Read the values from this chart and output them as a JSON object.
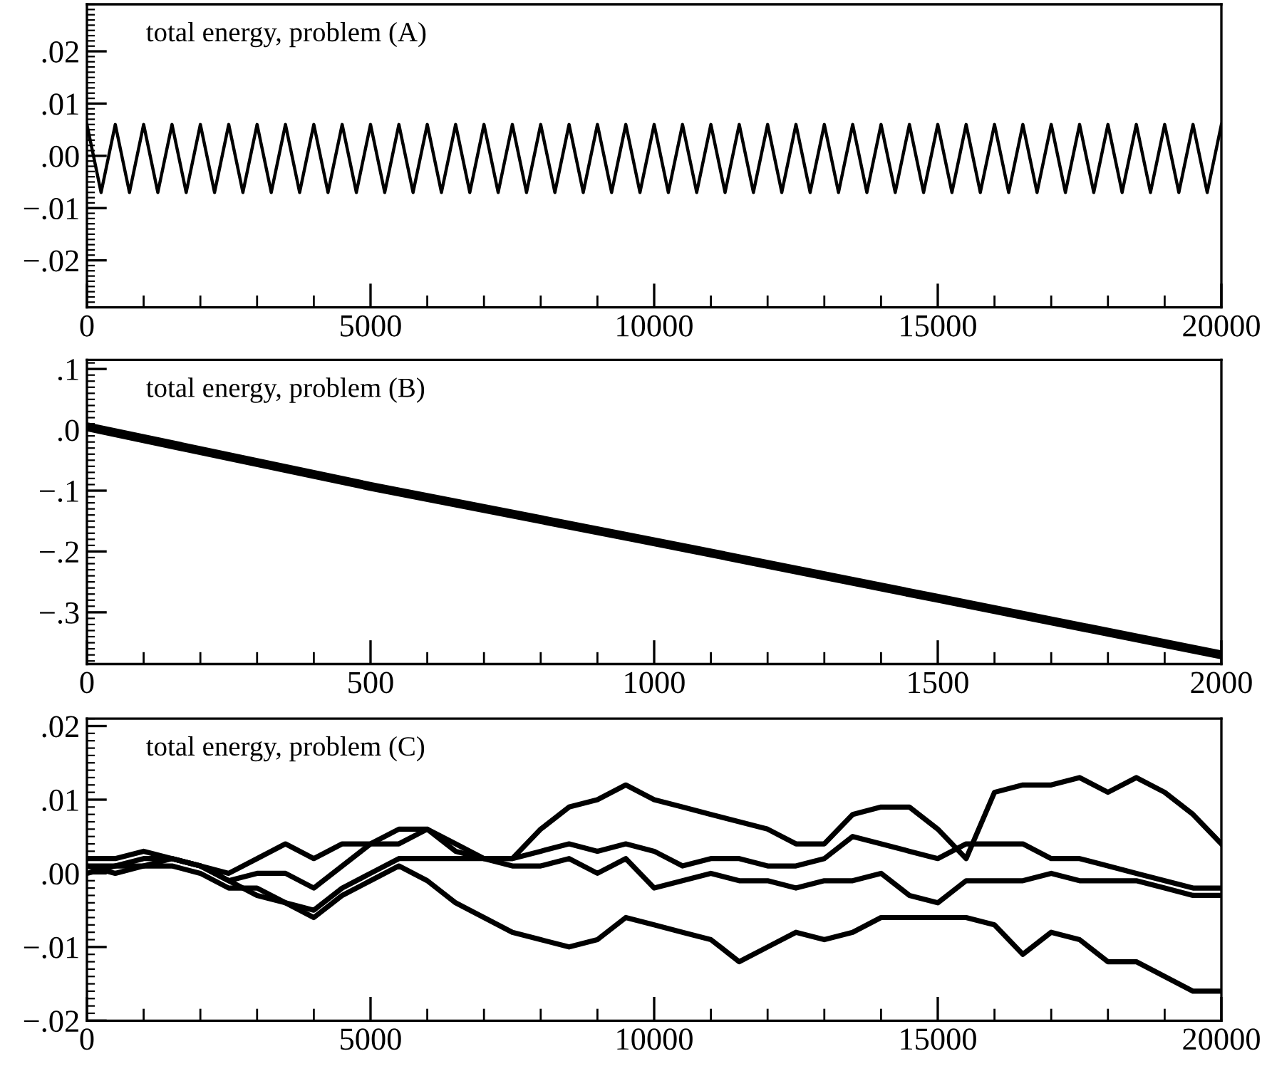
{
  "chart_data": [
    {
      "type": "line",
      "annotations": [
        "total energy, problem (A)"
      ],
      "xlim": [
        0,
        20000
      ],
      "ylim": [
        -0.029,
        0.029
      ],
      "xticks": [
        0,
        5000,
        10000,
        15000,
        20000
      ],
      "yticks": [
        {
          "value": -0.02,
          "label": "−.02"
        },
        {
          "value": -0.01,
          "label": "−.01"
        },
        {
          "value": 0,
          "label": ".00"
        },
        {
          "value": 0.01,
          "label": ".01"
        },
        {
          "value": 0.02,
          "label": ".02"
        }
      ],
      "x": [
        0,
        250,
        500,
        750,
        1000,
        1250,
        1500,
        1750,
        2000,
        2250,
        2500,
        2750,
        3000,
        3250,
        3500,
        3750,
        4000,
        4250,
        4500,
        4750,
        5000,
        5250,
        5500,
        5750,
        6000,
        6250,
        6500,
        6750,
        7000,
        7250,
        7500,
        7750,
        8000,
        8250,
        8500,
        8750,
        9000,
        9250,
        9500,
        9750,
        10000,
        10250,
        10500,
        10750,
        11000,
        11250,
        11500,
        11750,
        12000,
        12250,
        12500,
        12750,
        13000,
        13250,
        13500,
        13750,
        14000,
        14250,
        14500,
        14750,
        15000,
        15250,
        15500,
        15750,
        16000,
        16250,
        16500,
        16750,
        17000,
        17250,
        17500,
        17750,
        18000,
        18250,
        18500,
        18750,
        19000,
        19250,
        19500,
        19750,
        20000
      ],
      "series": [
        {
          "color": "#000000",
          "values": [
            0.006,
            -0.007,
            0.006,
            -0.007,
            0.006,
            -0.007,
            0.006,
            -0.007,
            0.006,
            -0.007,
            0.006,
            -0.007,
            0.006,
            -0.007,
            0.006,
            -0.007,
            0.006,
            -0.007,
            0.006,
            -0.007,
            0.006,
            -0.007,
            0.006,
            -0.007,
            0.006,
            -0.007,
            0.006,
            -0.007,
            0.006,
            -0.007,
            0.006,
            -0.007,
            0.006,
            -0.007,
            0.006,
            -0.007,
            0.006,
            -0.007,
            0.006,
            -0.007,
            0.006,
            -0.007,
            0.006,
            -0.007,
            0.006,
            -0.007,
            0.006,
            -0.007,
            0.006,
            -0.007,
            0.006,
            -0.007,
            0.006,
            -0.007,
            0.006,
            -0.007,
            0.006,
            -0.007,
            0.006,
            -0.007,
            0.006,
            -0.007,
            0.006,
            -0.007,
            0.006,
            -0.007,
            0.006,
            -0.007,
            0.006,
            -0.007,
            0.006,
            -0.007,
            0.006,
            -0.007,
            0.006,
            -0.007,
            0.006,
            -0.007,
            0.006,
            -0.007,
            0.006
          ]
        }
      ]
    },
    {
      "type": "line",
      "annotations": [
        "total energy, problem (B)"
      ],
      "xlim": [
        0,
        2000
      ],
      "ylim": [
        -0.385,
        0.115
      ],
      "xticks": [
        0,
        500,
        1000,
        1500,
        2000
      ],
      "yticks": [
        {
          "value": -0.3,
          "label": "−.3"
        },
        {
          "value": -0.2,
          "label": "−.2"
        },
        {
          "value": -0.1,
          "label": "−.1"
        },
        {
          "value": 0,
          "label": ".0"
        },
        {
          "value": 0.1,
          "label": ".1"
        }
      ],
      "x": [
        0,
        500,
        1000,
        1500,
        2000
      ],
      "series": [
        {
          "color": "#000000",
          "values": [
            0.005,
            -0.093,
            -0.184,
            -0.277,
            -0.37
          ]
        }
      ]
    },
    {
      "type": "line",
      "annotations": [
        "total energy, problem (C)"
      ],
      "xlim": [
        0,
        20000
      ],
      "ylim": [
        -0.02,
        0.021
      ],
      "xticks": [
        0,
        5000,
        10000,
        15000,
        20000
      ],
      "yticks": [
        {
          "value": -0.02,
          "label": "−.02"
        },
        {
          "value": -0.01,
          "label": "−.01"
        },
        {
          "value": 0,
          "label": ".00"
        },
        {
          "value": 0.01,
          "label": ".01"
        },
        {
          "value": 0.02,
          "label": ".02"
        }
      ],
      "x": [
        0,
        500,
        1000,
        1500,
        2000,
        2500,
        3000,
        3500,
        4000,
        4500,
        5000,
        5500,
        6000,
        6500,
        7000,
        7500,
        8000,
        8500,
        9000,
        9500,
        10000,
        10500,
        11000,
        11500,
        12000,
        12500,
        13000,
        13500,
        14000,
        14500,
        15000,
        15500,
        16000,
        16500,
        17000,
        17500,
        18000,
        18500,
        19000,
        19500,
        20000
      ],
      "series": [
        {
          "color": "#000000",
          "values": [
            0.001,
            0.001,
            0.002,
            0.002,
            0.001,
            0.0,
            0.002,
            0.004,
            0.002,
            0.004,
            0.004,
            0.006,
            0.006,
            0.004,
            0.002,
            0.002,
            0.006,
            0.009,
            0.01,
            0.012,
            0.01,
            0.009,
            0.008,
            0.007,
            0.006,
            0.004,
            0.004,
            0.008,
            0.009,
            0.009,
            0.006,
            0.002,
            0.011,
            0.012,
            0.012,
            0.013,
            0.011,
            0.013,
            0.011,
            0.008,
            0.004
          ]
        },
        {
          "color": "#000000",
          "values": [
            0.002,
            0.002,
            0.003,
            0.002,
            0.001,
            -0.001,
            0.0,
            0.0,
            -0.002,
            0.001,
            0.004,
            0.004,
            0.006,
            0.003,
            0.002,
            0.002,
            0.003,
            0.004,
            0.003,
            0.004,
            0.003,
            0.001,
            0.002,
            0.002,
            0.001,
            0.001,
            0.002,
            0.005,
            0.004,
            0.003,
            0.002,
            0.004,
            0.004,
            0.004,
            0.002,
            0.002,
            0.001,
            0.0,
            -0.001,
            -0.002,
            -0.002
          ]
        },
        {
          "color": "#000000",
          "values": [
            0.0,
            0.001,
            0.001,
            0.001,
            0.0,
            -0.002,
            -0.002,
            -0.004,
            -0.005,
            -0.002,
            0.0,
            0.002,
            0.002,
            0.002,
            0.002,
            0.001,
            0.001,
            0.002,
            0.0,
            0.002,
            -0.002,
            -0.001,
            0.0,
            -0.001,
            -0.001,
            -0.002,
            -0.001,
            -0.001,
            0.0,
            -0.003,
            -0.004,
            -0.001,
            -0.001,
            -0.001,
            0.0,
            -0.001,
            -0.001,
            -0.001,
            -0.002,
            -0.003,
            -0.003
          ]
        },
        {
          "color": "#000000",
          "values": [
            0.001,
            0.0,
            0.001,
            0.002,
            0.001,
            -0.001,
            -0.003,
            -0.004,
            -0.006,
            -0.003,
            -0.001,
            0.001,
            -0.001,
            -0.004,
            -0.006,
            -0.008,
            -0.009,
            -0.01,
            -0.009,
            -0.006,
            -0.007,
            -0.008,
            -0.009,
            -0.012,
            -0.01,
            -0.008,
            -0.009,
            -0.008,
            -0.006,
            -0.006,
            -0.006,
            -0.006,
            -0.007,
            -0.011,
            -0.008,
            -0.009,
            -0.012,
            -0.012,
            -0.014,
            -0.016,
            -0.016
          ]
        }
      ]
    }
  ]
}
